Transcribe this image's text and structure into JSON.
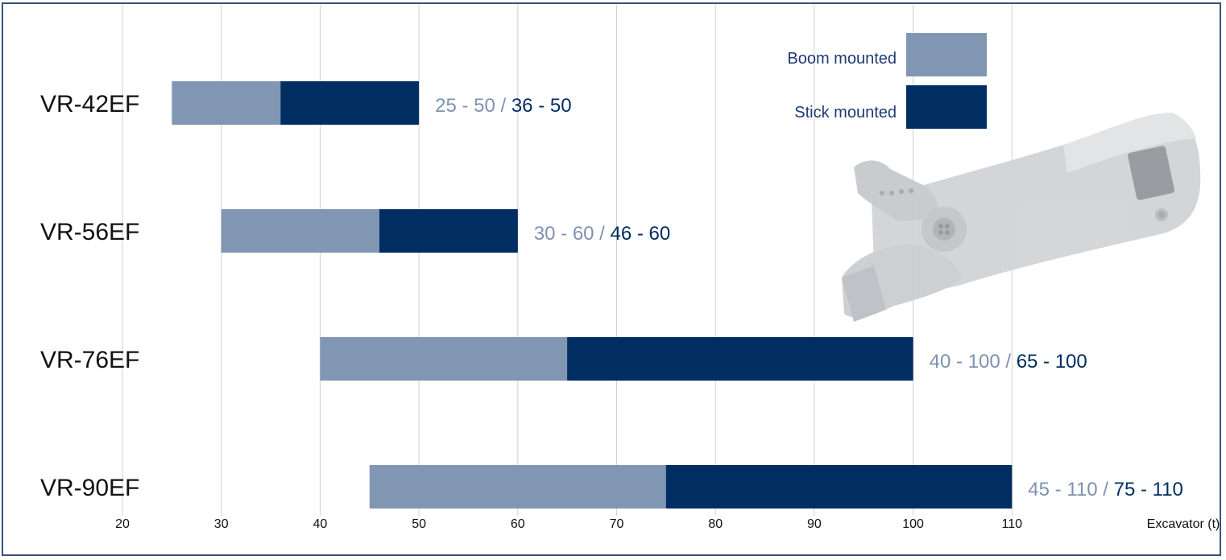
{
  "chart_data": {
    "type": "bar",
    "orientation": "horizontal",
    "stacked_ranges": true,
    "x_axis_label": "Excavator (t)",
    "xlim": [
      15,
      120
    ],
    "x_ticks": [
      20,
      30,
      40,
      50,
      60,
      70,
      80,
      90,
      100,
      110
    ],
    "x_tick_labels": [
      "20",
      "30",
      "40",
      "50",
      "60",
      "70",
      "80",
      "90",
      "100",
      "110"
    ],
    "grid": true,
    "legend_position": "top-right",
    "legend": [
      {
        "label": "Boom mounted",
        "color": "#8096b3"
      },
      {
        "label": "Stick mounted",
        "color": "#002d62"
      }
    ],
    "categories": [
      "VR-42EF",
      "VR-56EF",
      "VR-76EF",
      "VR-90EF"
    ],
    "series": [
      {
        "name": "Boom mounted",
        "color": "#8096b3",
        "ranges": [
          [
            25,
            50
          ],
          [
            30,
            60
          ],
          [
            40,
            100
          ],
          [
            45,
            110
          ]
        ],
        "labels": [
          "25 - 50",
          "30 - 60",
          "40 - 100",
          "45 - 110"
        ]
      },
      {
        "name": "Stick mounted",
        "color": "#002d62",
        "ranges": [
          [
            36,
            50
          ],
          [
            46,
            60
          ],
          [
            65,
            100
          ],
          [
            75,
            110
          ]
        ],
        "labels": [
          "36 - 50",
          "46 - 60",
          "65 - 100",
          "75 - 110"
        ]
      }
    ],
    "separator": " / "
  },
  "colors": {
    "boom": "#8096b3",
    "stick": "#002d62",
    "grid": "#d0d0d0",
    "frame": "#3a4f7a",
    "boom_text": "#7d92b0",
    "stick_text": "#002d62",
    "legend_text": "#1f3a70"
  },
  "decoration": {
    "image": "demolition-shear-attachment-illustration"
  }
}
